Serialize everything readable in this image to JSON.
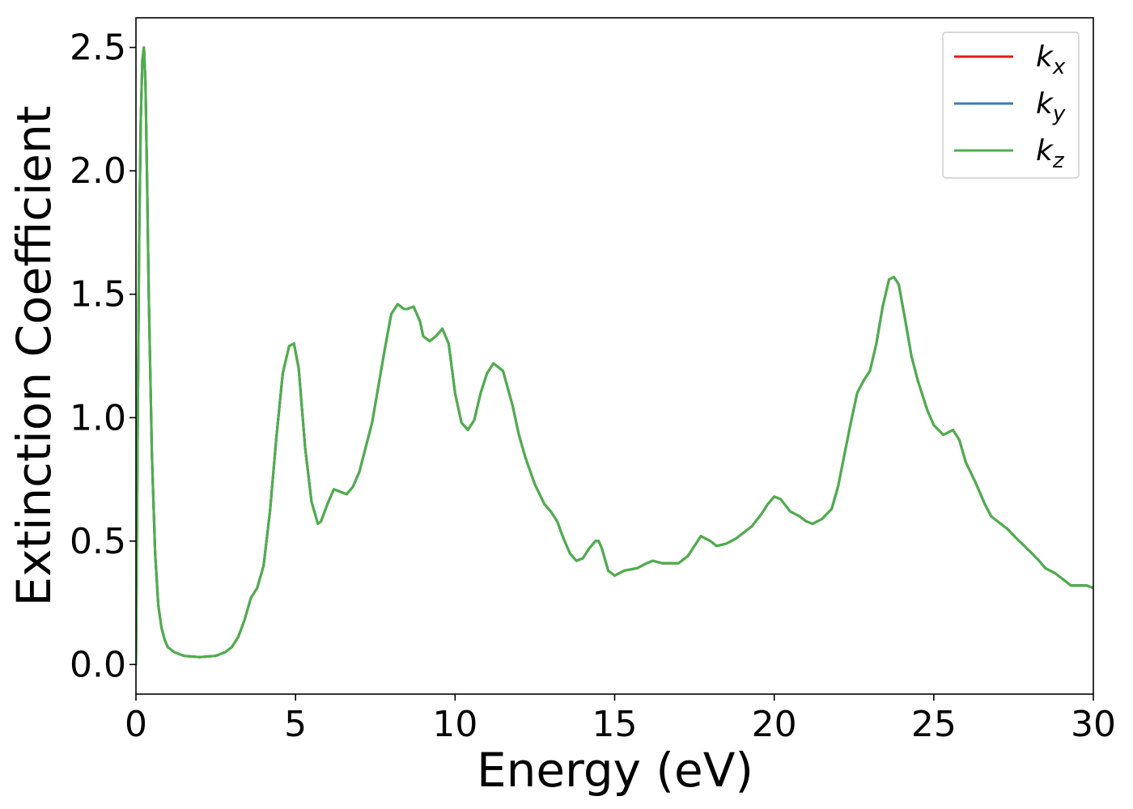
{
  "chart_data": {
    "type": "line",
    "title": "",
    "xlabel": "Energy (eV)",
    "ylabel": "Extinction Coefficient",
    "xlim": [
      0,
      30
    ],
    "ylim": [
      -0.12,
      2.62
    ],
    "x_ticks": [
      0,
      5,
      10,
      15,
      20,
      25,
      30
    ],
    "x_tick_labels": [
      "0",
      "5",
      "10",
      "15",
      "20",
      "25",
      "30"
    ],
    "y_ticks": [
      0.0,
      0.5,
      1.0,
      1.5,
      2.0,
      2.5
    ],
    "y_tick_labels": [
      "0.0",
      "0.5",
      "1.0",
      "1.5",
      "2.0",
      "2.5"
    ],
    "grid": false,
    "legend_position": "top-right",
    "series": [
      {
        "name": "kx",
        "label_base": "k",
        "label_sub": "x",
        "color": "#e41a1c",
        "x": [
          0,
          0.05,
          0.1,
          0.15,
          0.2,
          0.25,
          0.3,
          0.35,
          0.4,
          0.5,
          0.6,
          0.7,
          0.8,
          0.9,
          1.0,
          1.2,
          1.5,
          2.0,
          2.5,
          2.8,
          3.0,
          3.2,
          3.4,
          3.6,
          3.8,
          4.0,
          4.2,
          4.4,
          4.6,
          4.8,
          4.95,
          5.1,
          5.3,
          5.5,
          5.7,
          5.8,
          6.0,
          6.2,
          6.4,
          6.6,
          6.8,
          7.0,
          7.4,
          7.8,
          8.0,
          8.2,
          8.4,
          8.5,
          8.7,
          8.9,
          9.0,
          9.2,
          9.4,
          9.6,
          9.8,
          10.0,
          10.2,
          10.4,
          10.6,
          10.8,
          11.0,
          11.2,
          11.5,
          11.8,
          12.0,
          12.2,
          12.5,
          12.8,
          13.0,
          13.2,
          13.4,
          13.6,
          13.8,
          14.0,
          14.2,
          14.4,
          14.5,
          14.6,
          14.8,
          15.0,
          15.3,
          15.7,
          16.0,
          16.2,
          16.5,
          16.8,
          17.0,
          17.3,
          17.7,
          18.0,
          18.2,
          18.5,
          18.8,
          19.0,
          19.3,
          19.6,
          19.8,
          20.0,
          20.2,
          20.5,
          20.8,
          21.0,
          21.2,
          21.5,
          21.8,
          22.0,
          22.2,
          22.4,
          22.6,
          22.8,
          23.0,
          23.2,
          23.4,
          23.6,
          23.75,
          23.9,
          24.1,
          24.3,
          24.5,
          24.8,
          25.0,
          25.3,
          25.6,
          25.8,
          26.0,
          26.3,
          26.6,
          26.8,
          27.0,
          27.3,
          27.6,
          28.0,
          28.3,
          28.5,
          28.8,
          29.0,
          29.3,
          29.6,
          29.8,
          30.0
        ],
        "y": [
          0.0,
          0.9,
          1.7,
          2.2,
          2.45,
          2.5,
          2.35,
          1.95,
          1.5,
          0.85,
          0.45,
          0.24,
          0.15,
          0.1,
          0.07,
          0.05,
          0.035,
          0.03,
          0.035,
          0.05,
          0.07,
          0.11,
          0.18,
          0.27,
          0.31,
          0.4,
          0.62,
          0.92,
          1.18,
          1.29,
          1.3,
          1.2,
          0.88,
          0.66,
          0.57,
          0.58,
          0.65,
          0.71,
          0.7,
          0.69,
          0.72,
          0.78,
          0.98,
          1.28,
          1.42,
          1.46,
          1.44,
          1.44,
          1.45,
          1.39,
          1.33,
          1.31,
          1.33,
          1.36,
          1.3,
          1.1,
          0.98,
          0.95,
          0.99,
          1.1,
          1.18,
          1.22,
          1.19,
          1.05,
          0.93,
          0.84,
          0.73,
          0.65,
          0.62,
          0.58,
          0.51,
          0.45,
          0.42,
          0.43,
          0.47,
          0.5,
          0.5,
          0.47,
          0.38,
          0.36,
          0.38,
          0.39,
          0.41,
          0.42,
          0.41,
          0.41,
          0.41,
          0.44,
          0.52,
          0.5,
          0.48,
          0.49,
          0.51,
          0.53,
          0.56,
          0.61,
          0.65,
          0.68,
          0.67,
          0.62,
          0.6,
          0.58,
          0.57,
          0.59,
          0.63,
          0.72,
          0.85,
          0.98,
          1.1,
          1.15,
          1.19,
          1.3,
          1.45,
          1.56,
          1.57,
          1.54,
          1.4,
          1.25,
          1.15,
          1.03,
          0.97,
          0.93,
          0.95,
          0.91,
          0.82,
          0.74,
          0.65,
          0.6,
          0.58,
          0.55,
          0.51,
          0.46,
          0.42,
          0.39,
          0.37,
          0.35,
          0.32,
          0.32,
          0.32,
          0.31
        ]
      },
      {
        "name": "ky",
        "label_base": "k",
        "label_sub": "y",
        "color": "#377eb8",
        "x": [
          0,
          0.05,
          0.1,
          0.15,
          0.2,
          0.25,
          0.3,
          0.35,
          0.4,
          0.5,
          0.6,
          0.7,
          0.8,
          0.9,
          1.0,
          1.2,
          1.5,
          2.0,
          2.5,
          2.8,
          3.0,
          3.2,
          3.4,
          3.6,
          3.8,
          4.0,
          4.2,
          4.4,
          4.6,
          4.8,
          4.95,
          5.1,
          5.3,
          5.5,
          5.7,
          5.8,
          6.0,
          6.2,
          6.4,
          6.6,
          6.8,
          7.0,
          7.4,
          7.8,
          8.0,
          8.2,
          8.4,
          8.5,
          8.7,
          8.9,
          9.0,
          9.2,
          9.4,
          9.6,
          9.8,
          10.0,
          10.2,
          10.4,
          10.6,
          10.8,
          11.0,
          11.2,
          11.5,
          11.8,
          12.0,
          12.2,
          12.5,
          12.8,
          13.0,
          13.2,
          13.4,
          13.6,
          13.8,
          14.0,
          14.2,
          14.4,
          14.5,
          14.6,
          14.8,
          15.0,
          15.3,
          15.7,
          16.0,
          16.2,
          16.5,
          16.8,
          17.0,
          17.3,
          17.7,
          18.0,
          18.2,
          18.5,
          18.8,
          19.0,
          19.3,
          19.6,
          19.8,
          20.0,
          20.2,
          20.5,
          20.8,
          21.0,
          21.2,
          21.5,
          21.8,
          22.0,
          22.2,
          22.4,
          22.6,
          22.8,
          23.0,
          23.2,
          23.4,
          23.6,
          23.75,
          23.9,
          24.1,
          24.3,
          24.5,
          24.8,
          25.0,
          25.3,
          25.6,
          25.8,
          26.0,
          26.3,
          26.6,
          26.8,
          27.0,
          27.3,
          27.6,
          28.0,
          28.3,
          28.5,
          28.8,
          29.0,
          29.3,
          29.6,
          29.8,
          30.0
        ],
        "y": [
          0.0,
          0.9,
          1.7,
          2.2,
          2.45,
          2.5,
          2.35,
          1.95,
          1.5,
          0.85,
          0.45,
          0.24,
          0.15,
          0.1,
          0.07,
          0.05,
          0.035,
          0.03,
          0.035,
          0.05,
          0.07,
          0.11,
          0.18,
          0.27,
          0.31,
          0.4,
          0.62,
          0.92,
          1.18,
          1.29,
          1.3,
          1.2,
          0.88,
          0.66,
          0.57,
          0.58,
          0.65,
          0.71,
          0.7,
          0.69,
          0.72,
          0.78,
          0.98,
          1.28,
          1.42,
          1.46,
          1.44,
          1.44,
          1.45,
          1.39,
          1.33,
          1.31,
          1.33,
          1.36,
          1.3,
          1.1,
          0.98,
          0.95,
          0.99,
          1.1,
          1.18,
          1.22,
          1.19,
          1.05,
          0.93,
          0.84,
          0.73,
          0.65,
          0.62,
          0.58,
          0.51,
          0.45,
          0.42,
          0.43,
          0.47,
          0.5,
          0.5,
          0.47,
          0.38,
          0.36,
          0.38,
          0.39,
          0.41,
          0.42,
          0.41,
          0.41,
          0.41,
          0.44,
          0.52,
          0.5,
          0.48,
          0.49,
          0.51,
          0.53,
          0.56,
          0.61,
          0.65,
          0.68,
          0.67,
          0.62,
          0.6,
          0.58,
          0.57,
          0.59,
          0.63,
          0.72,
          0.85,
          0.98,
          1.1,
          1.15,
          1.19,
          1.3,
          1.45,
          1.56,
          1.57,
          1.54,
          1.4,
          1.25,
          1.15,
          1.03,
          0.97,
          0.93,
          0.95,
          0.91,
          0.82,
          0.74,
          0.65,
          0.6,
          0.58,
          0.55,
          0.51,
          0.46,
          0.42,
          0.39,
          0.37,
          0.35,
          0.32,
          0.32,
          0.32,
          0.31
        ]
      },
      {
        "name": "kz",
        "label_base": "k",
        "label_sub": "z",
        "color": "#4daf4a",
        "x": [
          0,
          0.05,
          0.1,
          0.15,
          0.2,
          0.25,
          0.3,
          0.35,
          0.4,
          0.5,
          0.6,
          0.7,
          0.8,
          0.9,
          1.0,
          1.2,
          1.5,
          2.0,
          2.5,
          2.8,
          3.0,
          3.2,
          3.4,
          3.6,
          3.8,
          4.0,
          4.2,
          4.4,
          4.6,
          4.8,
          4.95,
          5.1,
          5.3,
          5.5,
          5.7,
          5.8,
          6.0,
          6.2,
          6.4,
          6.6,
          6.8,
          7.0,
          7.4,
          7.8,
          8.0,
          8.2,
          8.4,
          8.5,
          8.7,
          8.9,
          9.0,
          9.2,
          9.4,
          9.6,
          9.8,
          10.0,
          10.2,
          10.4,
          10.6,
          10.8,
          11.0,
          11.2,
          11.5,
          11.8,
          12.0,
          12.2,
          12.5,
          12.8,
          13.0,
          13.2,
          13.4,
          13.6,
          13.8,
          14.0,
          14.2,
          14.4,
          14.5,
          14.6,
          14.8,
          15.0,
          15.3,
          15.7,
          16.0,
          16.2,
          16.5,
          16.8,
          17.0,
          17.3,
          17.7,
          18.0,
          18.2,
          18.5,
          18.8,
          19.0,
          19.3,
          19.6,
          19.8,
          20.0,
          20.2,
          20.5,
          20.8,
          21.0,
          21.2,
          21.5,
          21.8,
          22.0,
          22.2,
          22.4,
          22.6,
          22.8,
          23.0,
          23.2,
          23.4,
          23.6,
          23.75,
          23.9,
          24.1,
          24.3,
          24.5,
          24.8,
          25.0,
          25.3,
          25.6,
          25.8,
          26.0,
          26.3,
          26.6,
          26.8,
          27.0,
          27.3,
          27.6,
          28.0,
          28.3,
          28.5,
          28.8,
          29.0,
          29.3,
          29.6,
          29.8,
          30.0
        ],
        "y": [
          0.0,
          0.9,
          1.7,
          2.2,
          2.45,
          2.5,
          2.35,
          1.95,
          1.5,
          0.85,
          0.45,
          0.24,
          0.15,
          0.1,
          0.07,
          0.05,
          0.035,
          0.03,
          0.035,
          0.05,
          0.07,
          0.11,
          0.18,
          0.27,
          0.31,
          0.4,
          0.62,
          0.92,
          1.18,
          1.29,
          1.3,
          1.2,
          0.88,
          0.66,
          0.57,
          0.58,
          0.65,
          0.71,
          0.7,
          0.69,
          0.72,
          0.78,
          0.98,
          1.28,
          1.42,
          1.46,
          1.44,
          1.44,
          1.45,
          1.39,
          1.33,
          1.31,
          1.33,
          1.36,
          1.3,
          1.1,
          0.98,
          0.95,
          0.99,
          1.1,
          1.18,
          1.22,
          1.19,
          1.05,
          0.93,
          0.84,
          0.73,
          0.65,
          0.62,
          0.58,
          0.51,
          0.45,
          0.42,
          0.43,
          0.47,
          0.5,
          0.5,
          0.47,
          0.38,
          0.36,
          0.38,
          0.39,
          0.41,
          0.42,
          0.41,
          0.41,
          0.41,
          0.44,
          0.52,
          0.5,
          0.48,
          0.49,
          0.51,
          0.53,
          0.56,
          0.61,
          0.65,
          0.68,
          0.67,
          0.62,
          0.6,
          0.58,
          0.57,
          0.59,
          0.63,
          0.72,
          0.85,
          0.98,
          1.1,
          1.15,
          1.19,
          1.3,
          1.45,
          1.56,
          1.57,
          1.54,
          1.4,
          1.25,
          1.15,
          1.03,
          0.97,
          0.93,
          0.95,
          0.91,
          0.82,
          0.74,
          0.65,
          0.6,
          0.58,
          0.55,
          0.51,
          0.46,
          0.42,
          0.39,
          0.37,
          0.35,
          0.32,
          0.32,
          0.32,
          0.31
        ]
      }
    ]
  }
}
